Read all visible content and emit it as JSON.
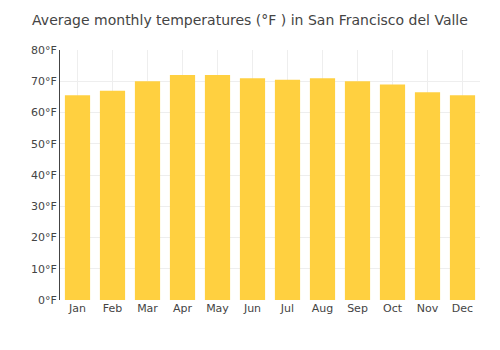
{
  "chart_data": {
    "type": "bar",
    "title": "Average monthly temperatures (°F ) in San Francisco del Valle",
    "categories": [
      "Jan",
      "Feb",
      "Mar",
      "Apr",
      "May",
      "Jun",
      "Jul",
      "Aug",
      "Sep",
      "Oct",
      "Nov",
      "Dec"
    ],
    "values": [
      65.5,
      67,
      70,
      72,
      72,
      71,
      70.5,
      71,
      70,
      69,
      66.5,
      65.5
    ],
    "color": "#FFD040",
    "ylim": [
      0,
      80
    ],
    "yticks": [
      {
        "value": 0,
        "label": "0°F"
      },
      {
        "value": 10,
        "label": "10°F"
      },
      {
        "value": 20,
        "label": "20°F"
      },
      {
        "value": 30,
        "label": "30°F"
      },
      {
        "value": 40,
        "label": "40°F"
      },
      {
        "value": 50,
        "label": "50°F"
      },
      {
        "value": 60,
        "label": "60°F"
      },
      {
        "value": 70,
        "label": "70°F"
      },
      {
        "value": 80,
        "label": "80°F"
      }
    ],
    "grid": true
  }
}
